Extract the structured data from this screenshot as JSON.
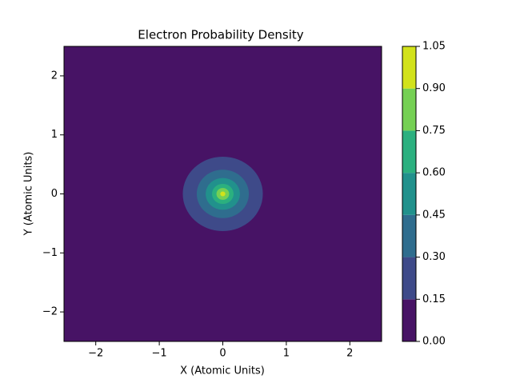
{
  "chart_data": {
    "type": "contour",
    "title": "Electron Probability Density",
    "x_label": "X (Atomic Units)",
    "y_label": "Y (Atomic Units)",
    "xlim": [
      -2.5,
      2.5
    ],
    "ylim": [
      -2.5,
      2.5
    ],
    "xticks": [
      {
        "value": -2,
        "label": "−2"
      },
      {
        "value": -1,
        "label": "−1"
      },
      0,
      1,
      2
    ],
    "yticks": [
      {
        "value": -2,
        "label": "−2"
      },
      {
        "value": -1,
        "label": "−1"
      },
      0,
      1,
      2
    ],
    "levels": [
      {
        "value": 0,
        "label": "0.00"
      },
      {
        "value": 0.15,
        "label": "0.15"
      },
      {
        "value": 0.3,
        "label": "0.30"
      },
      {
        "value": 0.45,
        "label": "0.45"
      },
      {
        "value": 0.6,
        "label": "0.60"
      },
      {
        "value": 0.75,
        "label": "0.75"
      },
      {
        "value": 0.9,
        "label": "0.90"
      },
      {
        "value": 1.05,
        "label": "1.05"
      }
    ],
    "colors": [
      "#471365",
      "#3e4a89",
      "#2f6d8e",
      "#21918c",
      "#2bb07f",
      "#75d054",
      "#d2e21b"
    ],
    "contour_radii": [
      0.63,
      0.41,
      0.27,
      0.17,
      0.1,
      0.04
    ]
  }
}
